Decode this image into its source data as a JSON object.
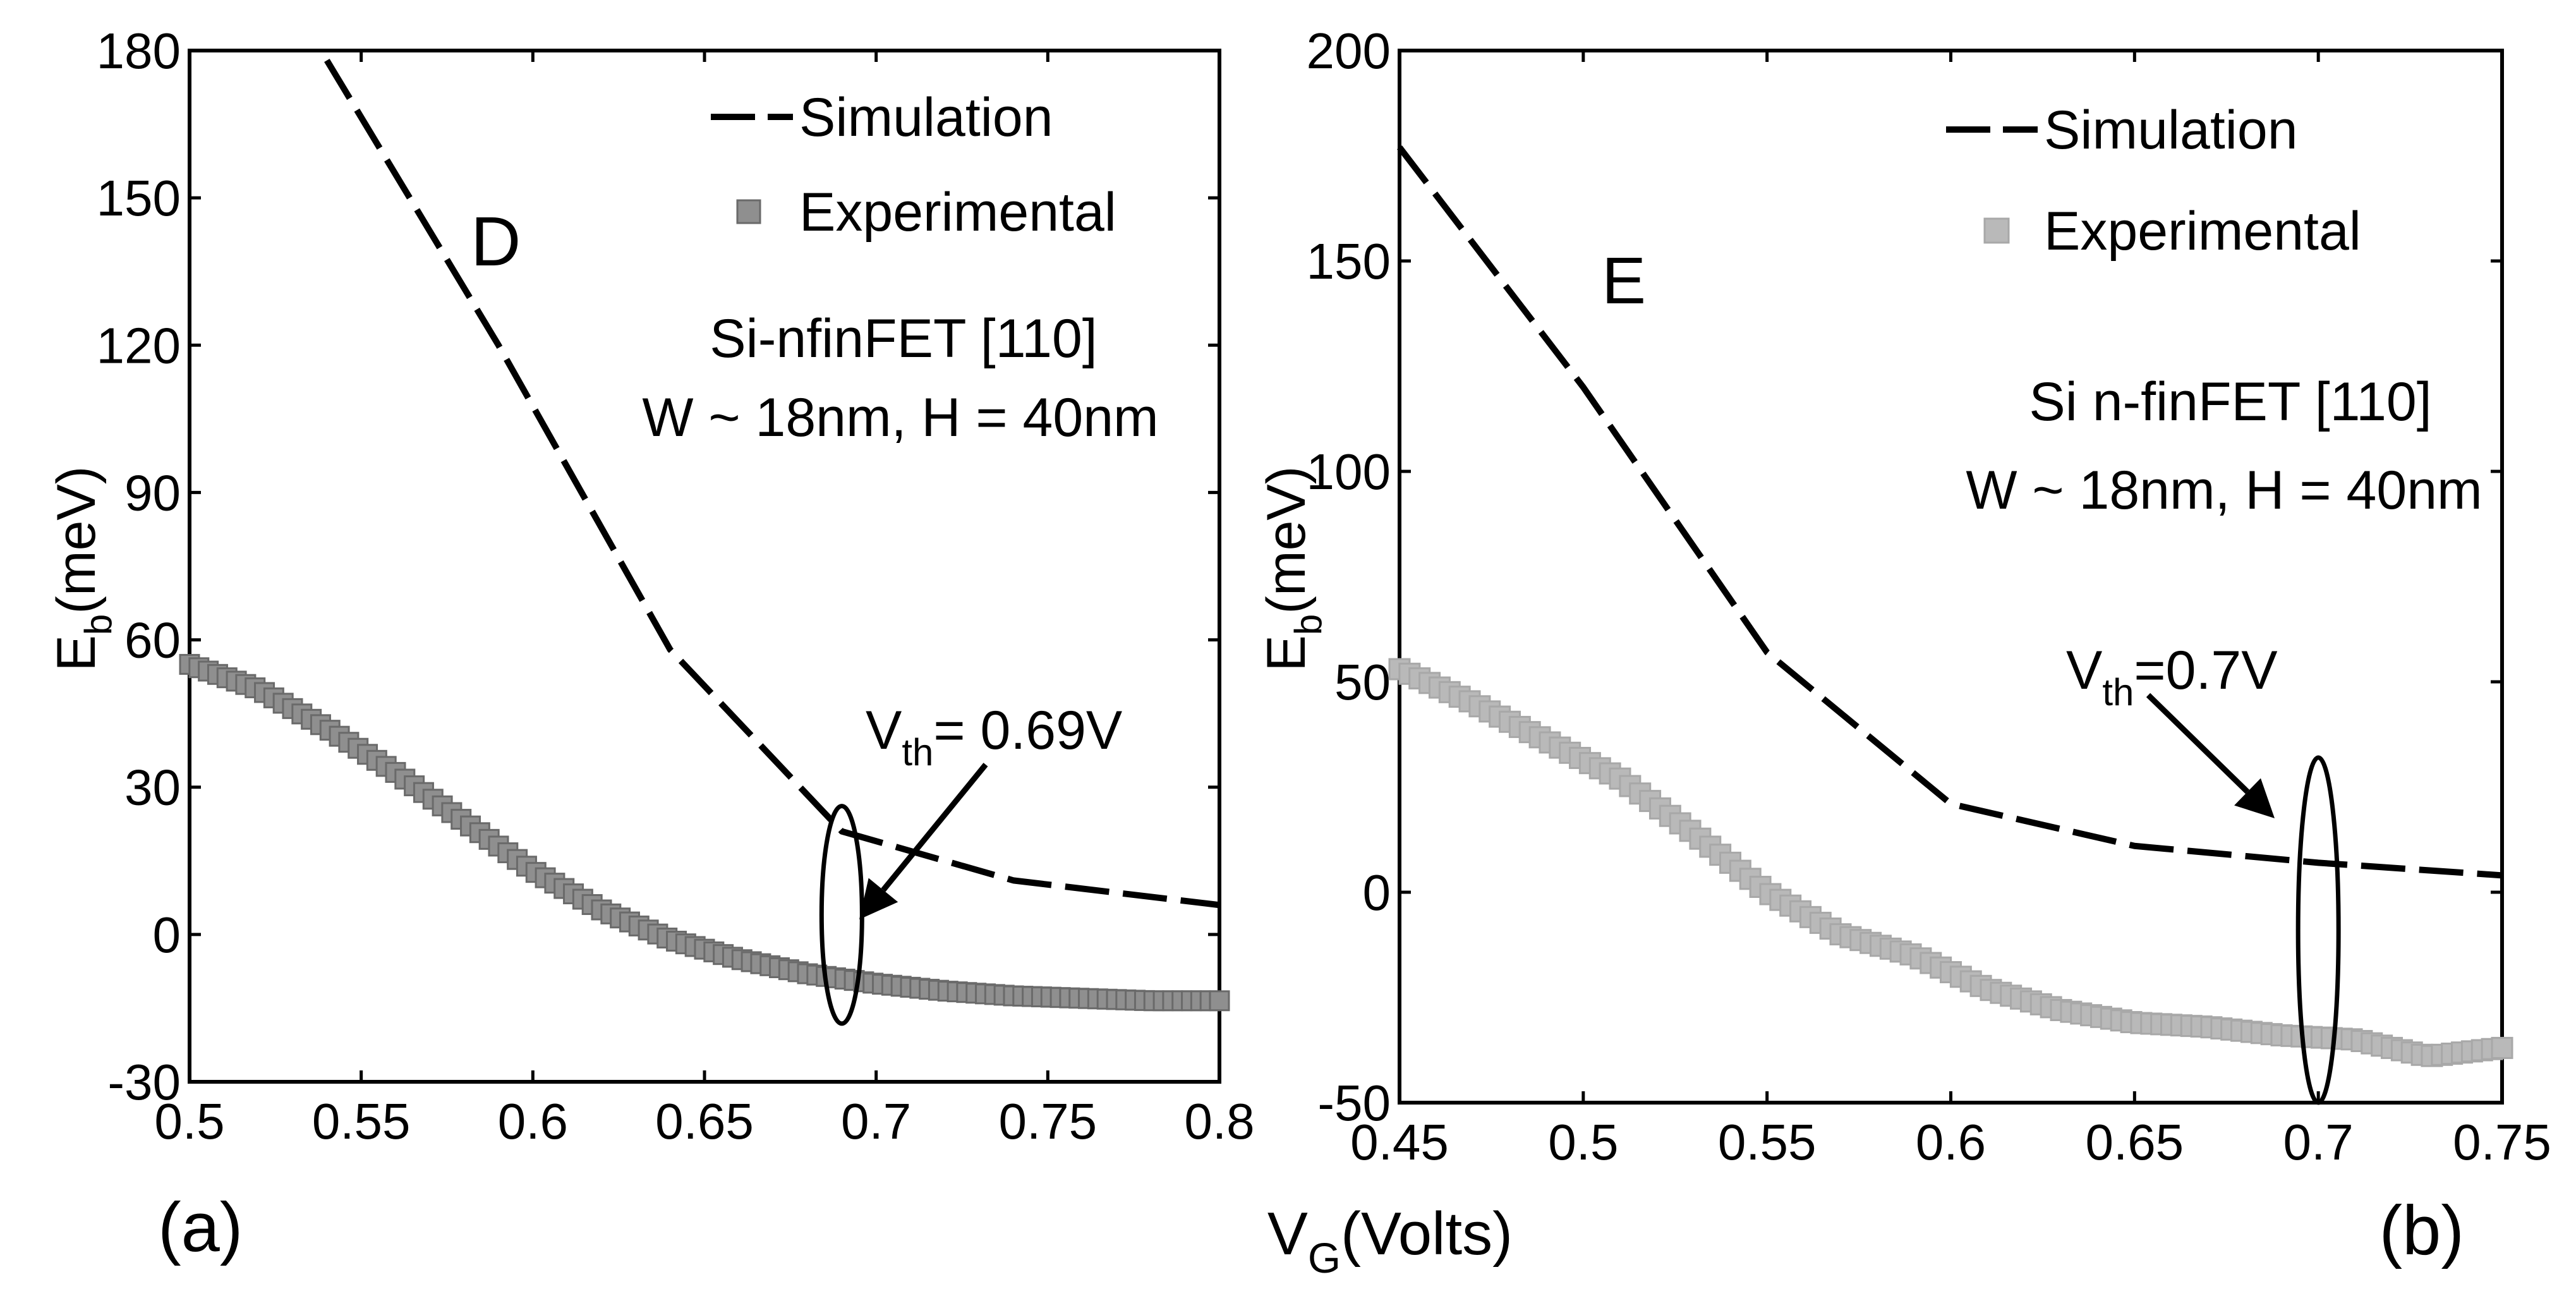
{
  "chart_data": [
    {
      "type": "line",
      "panel_label": "(a)",
      "letter": "D",
      "device": "Si-nfinFET [110]",
      "dims": "W ~ 18nm, H = 40nm",
      "vth": {
        "main": "V",
        "sub": "th",
        "rest": "= 0.69V",
        "x": 0.69,
        "y_top": 21,
        "y_bottom": -13
      },
      "ylabel": {
        "main": "E",
        "sub": "b",
        "rest": "(meV)"
      },
      "xlim": [
        0.5,
        0.8
      ],
      "ylim": [
        -30,
        180
      ],
      "xticks": [
        "0.5",
        "0.55",
        "0.6",
        "0.65",
        "0.7",
        "0.75",
        "0.8"
      ],
      "yticks": [
        "-30",
        "0",
        "30",
        "60",
        "90",
        "120",
        "150",
        "180"
      ],
      "series": [
        {
          "name": "Simulation",
          "style": "dashed",
          "color": "#000000",
          "x": [
            0.54,
            0.59,
            0.64,
            0.69,
            0.74,
            0.8
          ],
          "y": [
            178,
            120,
            58,
            21,
            11,
            6
          ]
        },
        {
          "name": "Experimental",
          "style": "markers",
          "color": "#8f8f8f",
          "x": [
            0.5,
            0.52,
            0.54,
            0.56,
            0.58,
            0.6,
            0.62,
            0.64,
            0.66,
            0.68,
            0.7,
            0.72,
            0.74,
            0.76,
            0.78,
            0.8
          ],
          "y": [
            55,
            50,
            42,
            33,
            23,
            13,
            5,
            -1,
            -5,
            -8,
            -10,
            -11.5,
            -12.5,
            -13,
            -13.5,
            -13.5
          ]
        }
      ]
    },
    {
      "type": "line",
      "panel_label": "(b)",
      "letter": "E",
      "device": "Si n-finFET [110]",
      "dims": "W ~ 18nm, H = 40nm",
      "vth": {
        "main": "V",
        "sub": "th",
        "rest": "=0.7V",
        "x": 0.7,
        "y_top": 26,
        "y_bottom": -44
      },
      "ylabel": {
        "main": "E",
        "sub": "b",
        "rest": "(meV)"
      },
      "xlim": [
        0.45,
        0.75
      ],
      "ylim": [
        -50,
        200
      ],
      "xticks": [
        "0.45",
        "0.5",
        "0.55",
        "0.6",
        "0.65",
        "0.7",
        "0.75"
      ],
      "yticks": [
        "-50",
        "0",
        "50",
        "100",
        "150",
        "200"
      ],
      "series": [
        {
          "name": "Simulation",
          "style": "dashed",
          "color": "#000000",
          "x": [
            0.45,
            0.5,
            0.55,
            0.6,
            0.65,
            0.7,
            0.75
          ],
          "y": [
            177,
            120,
            57,
            21,
            11,
            7,
            4
          ]
        },
        {
          "name": "Experimental",
          "style": "markers",
          "color": "#b9b9b9",
          "x": [
            0.45,
            0.47,
            0.49,
            0.51,
            0.53,
            0.55,
            0.57,
            0.59,
            0.61,
            0.63,
            0.65,
            0.67,
            0.69,
            0.71,
            0.73,
            0.75
          ],
          "y": [
            53,
            45,
            36,
            27,
            14,
            0,
            -10,
            -15,
            -23,
            -28,
            -31,
            -32,
            -34,
            -35,
            -39,
            -37
          ]
        }
      ]
    }
  ],
  "xlabel": {
    "main": "V",
    "sub": "G",
    "rest": "(Volts)"
  }
}
